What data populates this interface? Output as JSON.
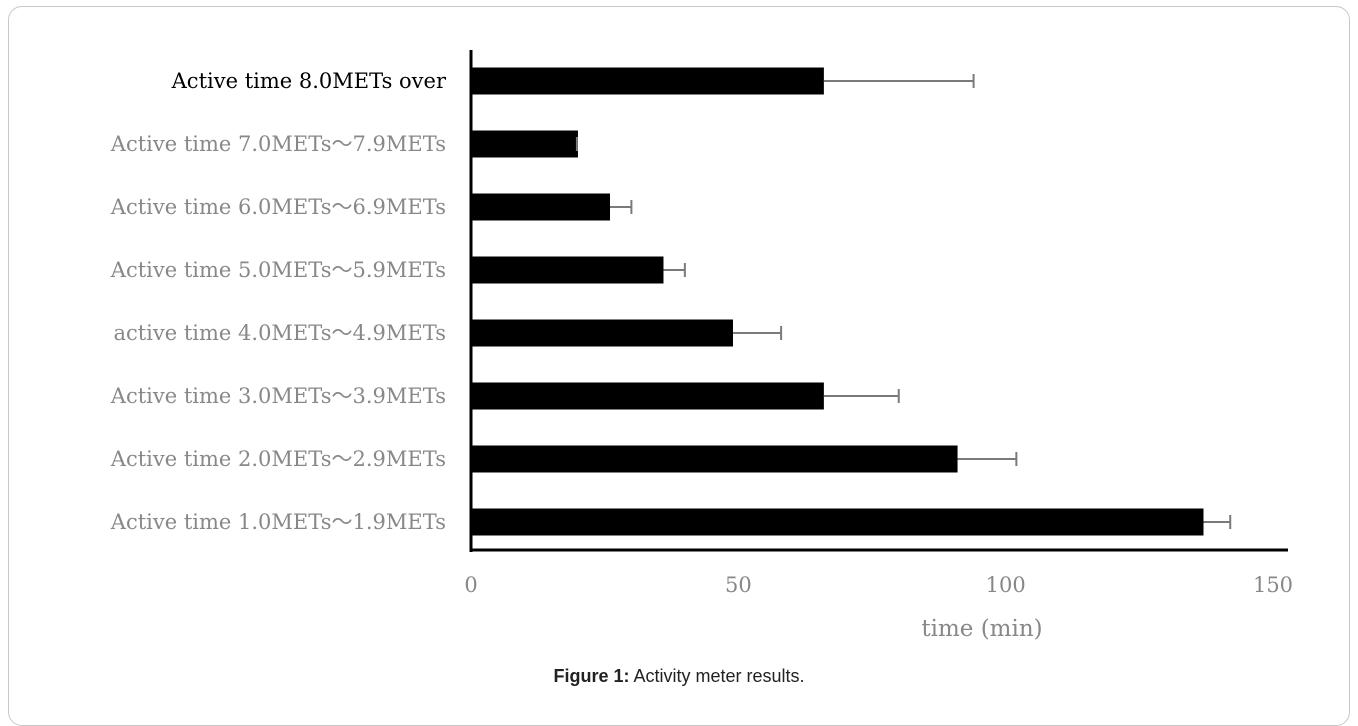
{
  "chart_data": {
    "type": "bar",
    "orientation": "horizontal",
    "categories": [
      "Active time 8.0METs over",
      "Active time 7.0METs～7.9METs",
      "Active time 6.0METs～6.9METs",
      "Active time 5.0METs～5.9METs",
      "active time 4.0METs～4.9METs",
      "Active time 3.0METs～3.9METs",
      "Active time 2.0METs～2.9METs",
      "Active time 1.0METs～1.9METs"
    ],
    "values": [
      66,
      20,
      26,
      36,
      49,
      66,
      91,
      137
    ],
    "error": [
      28,
      0,
      4,
      4,
      9,
      14,
      11,
      5
    ],
    "xlabel": "time (min)",
    "xticks": [
      "0",
      "50",
      "100",
      "150"
    ],
    "xlim": [
      0,
      150
    ],
    "grid": false,
    "colors": {
      "bar": "#000000",
      "error_bar": "#7a7a7a",
      "first_label": "#000000",
      "other_labels": "#888888"
    }
  },
  "caption": {
    "prefix": "Figure 1:",
    "text": " Activity meter results."
  }
}
